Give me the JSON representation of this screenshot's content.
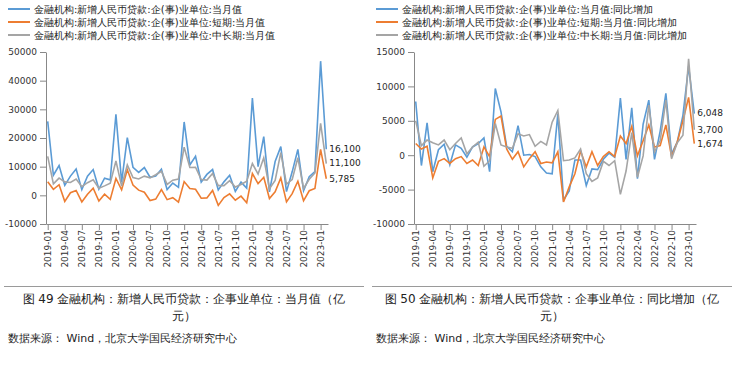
{
  "chart_data": [
    {
      "type": "line",
      "caption": "图 49  金融机构：新增人民币贷款：企事业单位：当月值（亿元）",
      "source": "数据来源：  Wind，北京大学国民经济研究中心",
      "categories": [
        "2019-01",
        null,
        null,
        "2019-04",
        null,
        null,
        "2019-07",
        null,
        null,
        "2019-10",
        null,
        null,
        "2020-01",
        null,
        null,
        "2020-04",
        null,
        null,
        "2020-07",
        null,
        null,
        "2020-10",
        null,
        null,
        "2021-01",
        null,
        null,
        "2021-04",
        null,
        null,
        "2021-07",
        null,
        null,
        "2021-10",
        null,
        null,
        "2022-01",
        null,
        null,
        "2022-04",
        null,
        null,
        "2022-07",
        null,
        null,
        "2022-10",
        null,
        null,
        "2023-01",
        null
      ],
      "ylim": [
        -10000,
        50000
      ],
      "yticks": [
        -10000,
        0,
        10000,
        20000,
        30000,
        40000,
        50000
      ],
      "grid": false,
      "legend": "top-left",
      "data_labels": true,
      "series": [
        {
          "name": "金融机构:新增人民币贷款:企(事)业单位:当月值",
          "color": "#5b9bd5",
          "values": [
            25800,
            7000,
            10400,
            3500,
            6700,
            9200,
            2000,
            6700,
            9000,
            2200,
            6000,
            5400,
            28300,
            4600,
            20100,
            9800,
            8000,
            9700,
            6300,
            6700,
            9100,
            2000,
            4300,
            2800,
            25600,
            10600,
            13600,
            4600,
            7300,
            9000,
            1900,
            4700,
            7000,
            1400,
            4600,
            2500,
            33900,
            10000,
            20500,
            1200,
            11800,
            17000,
            1300,
            8200,
            16000,
            1600,
            6500,
            8300,
            46800,
            16100
          ],
          "value_labels": [
            null,
            null,
            null,
            null,
            null,
            null,
            null,
            null,
            null,
            null,
            null,
            null,
            null,
            null,
            null,
            null,
            null,
            null,
            null,
            null,
            null,
            null,
            null,
            null,
            null,
            null,
            null,
            null,
            null,
            null,
            null,
            null,
            null,
            null,
            null,
            null,
            null,
            null,
            null,
            null,
            null,
            null,
            null,
            null,
            null,
            null,
            null,
            null,
            null,
            "16,100"
          ]
        },
        {
          "name": "金融机构:新增人民币贷款:企(事)业单位:短期:当月值",
          "color": "#ed7d31",
          "values": [
            4700,
            2100,
            3700,
            -2100,
            900,
            1700,
            -2300,
            400,
            2500,
            -2000,
            400,
            -1400,
            5900,
            1900,
            8900,
            3600,
            1800,
            1100,
            -1800,
            -1300,
            2000,
            -1500,
            -800,
            -2400,
            4800,
            2400,
            2100,
            -1000,
            -900,
            1700,
            -3500,
            -800,
            500,
            -1700,
            -300,
            -2600,
            7600,
            4100,
            6300,
            -1100,
            1200,
            6100,
            -2300,
            600,
            4900,
            -1900,
            1600,
            2400,
            16000,
            5785
          ],
          "value_labels": [
            null,
            null,
            null,
            null,
            null,
            null,
            null,
            null,
            null,
            null,
            null,
            null,
            null,
            null,
            null,
            null,
            null,
            null,
            null,
            null,
            null,
            null,
            null,
            null,
            null,
            null,
            null,
            null,
            null,
            null,
            null,
            null,
            null,
            null,
            null,
            null,
            null,
            null,
            null,
            null,
            null,
            null,
            null,
            null,
            null,
            null,
            null,
            null,
            null,
            "5,785"
          ]
        },
        {
          "name": "金融机构:新增人民币贷款:企(事)业单位:中长期:当月值",
          "color": "#a5a5a5",
          "values": [
            13600,
            4000,
            6000,
            4700,
            4500,
            5700,
            3000,
            4400,
            5400,
            2500,
            3300,
            4200,
            12000,
            3200,
            10600,
            6200,
            5700,
            6700,
            6100,
            7200,
            8400,
            3800,
            5300,
            5700,
            16800,
            9700,
            9800,
            5500,
            5300,
            7600,
            3400,
            3400,
            5100,
            2900,
            3800,
            4900,
            11100,
            7400,
            13100,
            2300,
            5200,
            14900,
            3900,
            5500,
            13100,
            2400,
            5600,
            7800,
            25100,
            11100
          ],
          "value_labels": [
            null,
            null,
            null,
            null,
            null,
            null,
            null,
            null,
            null,
            null,
            null,
            null,
            null,
            null,
            null,
            null,
            null,
            null,
            null,
            null,
            null,
            null,
            null,
            null,
            null,
            null,
            null,
            null,
            null,
            null,
            null,
            null,
            null,
            null,
            null,
            null,
            null,
            null,
            null,
            null,
            null,
            null,
            null,
            null,
            null,
            null,
            null,
            null,
            null,
            "11,100"
          ]
        }
      ]
    },
    {
      "type": "line",
      "caption": "图 50  金融机构：新增人民币贷款：企事业单位：同比增加（亿元）",
      "source": "数据来源：  Wind，北京大学国民经济研究中心",
      "categories": [
        "2019-01",
        null,
        null,
        "2019-04",
        null,
        null,
        "2019-07",
        null,
        null,
        "2019-10",
        null,
        null,
        "2020-01",
        null,
        null,
        "2020-04",
        null,
        null,
        "2020-07",
        null,
        null,
        "2020-10",
        null,
        null,
        "2021-01",
        null,
        null,
        "2021-04",
        null,
        null,
        "2021-07",
        null,
        null,
        "2021-10",
        null,
        null,
        "2022-01",
        null,
        null,
        "2022-04",
        null,
        null,
        "2022-07",
        null,
        null,
        "2022-10",
        null,
        null,
        "2023-01",
        null
      ],
      "ylim": [
        -10000,
        15000
      ],
      "yticks": [
        -10000,
        -5000,
        0,
        5000,
        10000,
        15000
      ],
      "grid": false,
      "legend": "top-left",
      "data_labels": true,
      "series": [
        {
          "name": "金融机构:新增人民币贷款:企(事)业单位:当月值:同比增加",
          "color": "#5b9bd5",
          "values": [
            7800,
            -1500,
            4700,
            -2400,
            800,
            1600,
            -1400,
            1500,
            1000,
            -300,
            1200,
            1700,
            2500,
            -2400,
            9700,
            6300,
            1300,
            500,
            4300,
            0,
            100,
            -200,
            -1700,
            -2600,
            -2700,
            6000,
            -6500,
            -5200,
            -700,
            -700,
            -4400,
            -2000,
            -2100,
            -600,
            300,
            -300,
            8300,
            -600,
            6900,
            -3400,
            4500,
            8000,
            -600,
            3500,
            9000,
            200,
            1900,
            5800,
            12900,
            6048
          ],
          "value_labels": [
            null,
            null,
            null,
            null,
            null,
            null,
            null,
            null,
            null,
            null,
            null,
            null,
            null,
            null,
            null,
            null,
            null,
            null,
            null,
            null,
            null,
            null,
            null,
            null,
            null,
            null,
            null,
            null,
            null,
            null,
            null,
            null,
            null,
            null,
            null,
            null,
            null,
            null,
            null,
            null,
            null,
            null,
            null,
            null,
            null,
            null,
            null,
            null,
            null,
            "6,048"
          ]
        },
        {
          "name": "金融机构:新增人民币贷款:企(事)业单位:短期:当月值:同比增加",
          "color": "#ed7d31",
          "values": [
            1700,
            900,
            1300,
            -3300,
            -900,
            -500,
            -1200,
            -500,
            -200,
            -1200,
            -700,
            -1500,
            1200,
            -200,
            5200,
            5700,
            900,
            -600,
            500,
            -1700,
            -500,
            500,
            -1200,
            -1000,
            -1100,
            500,
            -6800,
            -4600,
            -2700,
            600,
            -1700,
            500,
            -1500,
            -200,
            500,
            -200,
            2800,
            1700,
            4200,
            -100,
            2100,
            4400,
            1200,
            1400,
            4400,
            -200,
            1900,
            5000,
            8400,
            1674
          ],
          "value_labels": [
            null,
            null,
            null,
            null,
            null,
            null,
            null,
            null,
            null,
            null,
            null,
            null,
            null,
            null,
            null,
            null,
            null,
            null,
            null,
            null,
            null,
            null,
            null,
            null,
            null,
            null,
            null,
            null,
            null,
            null,
            null,
            null,
            null,
            null,
            null,
            null,
            null,
            null,
            null,
            null,
            null,
            null,
            null,
            null,
            null,
            null,
            null,
            null,
            null,
            "1,674"
          ]
        },
        {
          "name": "金融机构:新增人民币贷款:企(事)业单位:中长期:当月值:同比增加",
          "color": "#a5a5a5",
          "values": [
            5000,
            1400,
            2200,
            1800,
            1500,
            2200,
            800,
            1700,
            2500,
            200,
            1200,
            1900,
            -1600,
            -800,
            4600,
            1500,
            1200,
            1000,
            3100,
            2800,
            3000,
            1300,
            2000,
            1500,
            4800,
            6500,
            -800,
            -700,
            -400,
            900,
            -2700,
            -3800,
            -3300,
            -900,
            -1500,
            -800,
            -5700,
            -2300,
            3300,
            -3200,
            -100,
            7300,
            500,
            2100,
            8000,
            -500,
            1800,
            2900,
            14000,
            3700
          ],
          "value_labels": [
            null,
            null,
            null,
            null,
            null,
            null,
            null,
            null,
            null,
            null,
            null,
            null,
            null,
            null,
            null,
            null,
            null,
            null,
            null,
            null,
            null,
            null,
            null,
            null,
            null,
            null,
            null,
            null,
            null,
            null,
            null,
            null,
            null,
            null,
            null,
            null,
            null,
            null,
            null,
            null,
            null,
            null,
            null,
            null,
            null,
            null,
            null,
            null,
            null,
            "3,700"
          ]
        }
      ]
    }
  ]
}
